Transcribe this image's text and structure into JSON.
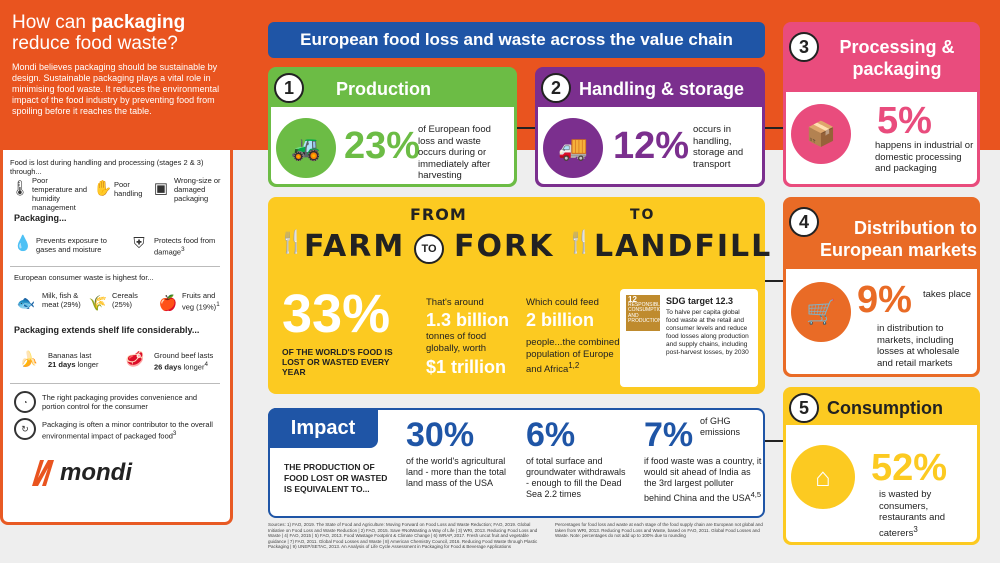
{
  "left": {
    "title_pre": "How can ",
    "title_bold": "packaging",
    "title_post": "reduce food waste?",
    "intro": "Mondi believes packaging should be sustainable by design. Sustainable packaging plays a vital role in minimising food waste. It reduces the environmental impact of the food industry by preventing food from spoiling before it reaches the table.",
    "lost_text": "Food is lost during handling and processing (stages 2 & 3) through...",
    "causes": [
      "Poor temperature and humidity management",
      "Poor handling",
      "Wrong-size or damaged packaging"
    ],
    "packaging_head": "Packaging...",
    "packaging_items": [
      "Prevents exposure to gases and moisture",
      "Protects food from damage"
    ],
    "packaging_sup": "3",
    "consumer_text": "European consumer waste is highest for...",
    "consumer_items": [
      "Milk, fish & meat (29%)",
      "Cereals (25%)",
      "Fruits and veg (19%)"
    ],
    "consumer_sup": "1",
    "shelf_head": "Packaging extends shelf life considerably...",
    "banana_pre": "Bananas last",
    "banana_bold": "21 days",
    "banana_post": "longer",
    "beef_pre": "Ground beef lasts",
    "beef_bold": "26 days",
    "beef_post": "longer",
    "beef_sup": "4",
    "convenience": "The right packaging provides convenience and portion control for the consumer",
    "minor": "Packaging is often a minor contributor to the overall environmental impact of packaged food",
    "minor_sup": "3",
    "logo": "mondi",
    "colors": {
      "orange": "#e9541f",
      "blue": "#1f55a6",
      "green": "#6cbc45",
      "purple": "#7b2f8e",
      "pink": "#e94c7d",
      "orange2": "#e96b26",
      "yellow": "#fcca21"
    }
  },
  "header": "European food loss and waste across the value chain",
  "s1": {
    "num": "1",
    "title": "Production",
    "pct": "23%",
    "text": "of European food loss and waste occurs during or immediately after harvesting",
    "icon": "tractor-icon"
  },
  "s2": {
    "num": "2",
    "title": "Handling & storage",
    "pct": "12%",
    "text": "occurs in handling, storage and transport",
    "icon": "truck-icon"
  },
  "s3": {
    "num": "3",
    "title": "Processing & packaging",
    "pct": "5%",
    "text": "happens in industrial or domestic processing and packaging",
    "icon": "box-icon"
  },
  "s4": {
    "num": "4",
    "title": "Distribution to European markets",
    "pct": "9%",
    "text_inline": "takes place",
    "text": "in distribution to markets, including losses at wholesale and retail markets",
    "icon": "cart-icon"
  },
  "s5": {
    "num": "5",
    "title": "Consumption",
    "pct": "52%",
    "text": "is wasted by consumers, restaurants and caterers",
    "sup": "3",
    "icon": "house-icon"
  },
  "farm": {
    "from": "FROM",
    "farm": "FARM",
    "to1": "TO",
    "fork": "FORK",
    "to2": "TO",
    "landfill": "LANDFILL",
    "pct": "33%",
    "pct_text": "OF THE WORLD'S FOOD IS LOST OR WASTED EVERY YEAR",
    "around": "That's around",
    "tonnes": "1.3 billion",
    "tonnes_text": "tonnes of food globally, worth",
    "trillion": "$1 trillion",
    "feed": "Which could feed",
    "people": "2 billion",
    "people_text": "people...the combined population of Europe and Africa",
    "people_sup": "1,2",
    "sdg_num": "12",
    "sdg_label": "RESPONSIBLE CONSUMPTION AND PRODUCTION",
    "sdg_title": "SDG target 12.3",
    "sdg_text": "To halve per capita global food waste at the retail and consumer levels and reduce food losses along production and supply chains, including post-harvest losses, by 2030"
  },
  "impact": {
    "title": "Impact",
    "lead": "THE PRODUCTION OF FOOD LOST OR WASTED IS EQUIVALENT TO...",
    "v1": "30%",
    "t1": "of the world's agricultural land - more than the total land mass of the USA",
    "v2": "6%",
    "t2": "of total surface and groundwater withdrawals - enough to fill the Dead Sea 2.2 times",
    "v3": "7%",
    "v3_side": "of GHG emissions",
    "t3": "if food waste was a country, it would sit ahead of India as the 3rd largest polluter behind China and the USA",
    "t3_sup": "4,5"
  },
  "sources": "Sources: 1) FAO, 2019. The State of Food and Agriculture: Moving Forward on Food Loss and Waste Reduction; FAO, 2019. Global Initiative on Food Loss and Waste Reduction | 2) FAO, 2015. Save #NotWasting a Way of Life | 3) WRI, 2013. Reducing Food Loss and Waste | 4) FAO, 2015 | 5) FAO, 2013. Food Wastage Footprint & Climate Change | 6) WRAP, 2017. Fresh uncut fruit and vegetable guidance | 7) FAO, 2011. Global Food Losses and Waste | 8) American Chemistry Council, 2016. Reducing Food Waste through Plastic Packaging | 9) UNEP/SETAC, 2013. An Analysis of Life Cycle Assessment in Packaging for Food & Beverage Applications",
  "note": "Percentages for food loss and waste at each stage of the food supply chain are European not global and taken from WRI, 2013. Reducing Food Loss and Waste, based on FAO, 2011. Global Food Losses and Waste. Note: percentages do not add up to 100% due to rounding"
}
